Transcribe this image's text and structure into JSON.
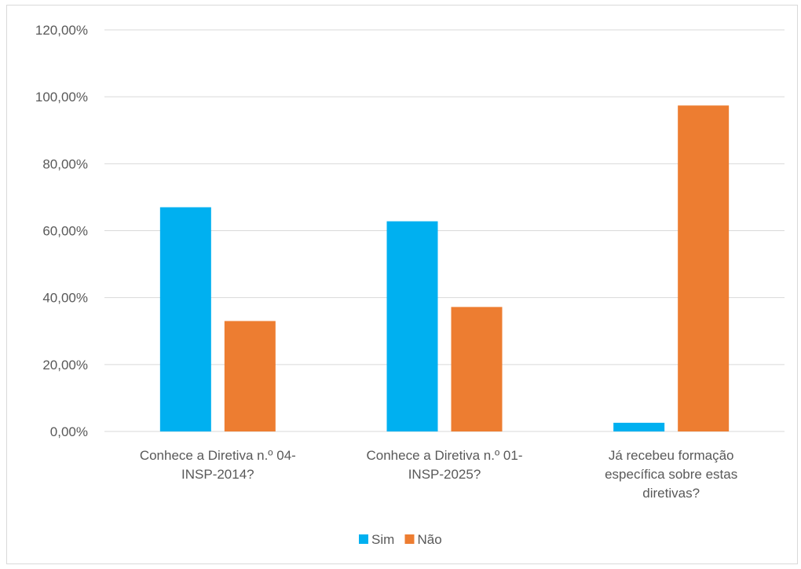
{
  "chart_data": {
    "type": "bar",
    "categories": [
      [
        "Conhece a Diretiva n.º 04-",
        "INSP-2014?"
      ],
      [
        "Conhece a Diretiva n.º 01-",
        "INSP-2025?"
      ],
      [
        "Já recebeu formação",
        "específica sobre estas",
        "diretivas?"
      ]
    ],
    "series": [
      {
        "name": "Sim",
        "color": "#00b0f0",
        "values": [
          67.0,
          62.8,
          2.6
        ]
      },
      {
        "name": "Não",
        "color": "#ed7d31",
        "values": [
          33.0,
          37.2,
          97.4
        ]
      }
    ],
    "y_ticks": [
      "0,00%",
      "20,00%",
      "40,00%",
      "60,00%",
      "80,00%",
      "100,00%",
      "120,00%"
    ],
    "ylim": [
      0,
      120
    ],
    "grid": true,
    "legend_position": "bottom"
  }
}
